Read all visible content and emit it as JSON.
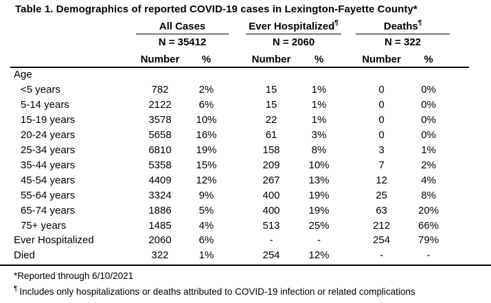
{
  "title": "Table 1. Demographics of reported COVID-19 cases in Lexington-Fayette County*",
  "table": {
    "groups": [
      {
        "label": "All Cases",
        "footnote_mark": "",
        "n_label": "N = 35412"
      },
      {
        "label": "Ever Hospitalized",
        "footnote_mark": "¶",
        "n_label": "N = 2060"
      },
      {
        "label": "Deaths",
        "footnote_mark": "¶",
        "n_label": "N = 322"
      }
    ],
    "subheader": {
      "number": "Number",
      "percent": "%"
    },
    "rows": [
      {
        "label": "Age",
        "indent": false,
        "values": [
          "",
          "",
          "",
          "",
          "",
          ""
        ]
      },
      {
        "label": "<5 years",
        "indent": true,
        "values": [
          "782",
          "2%",
          "15",
          "1%",
          "0",
          "0%"
        ]
      },
      {
        "label": "5-14 years",
        "indent": true,
        "values": [
          "2122",
          "6%",
          "15",
          "1%",
          "0",
          "0%"
        ]
      },
      {
        "label": "15-19 years",
        "indent": true,
        "values": [
          "3578",
          "10%",
          "22",
          "1%",
          "0",
          "0%"
        ]
      },
      {
        "label": "20-24 years",
        "indent": true,
        "values": [
          "5658",
          "16%",
          "61",
          "3%",
          "0",
          "0%"
        ]
      },
      {
        "label": "25-34 years",
        "indent": true,
        "values": [
          "6810",
          "19%",
          "158",
          "8%",
          "3",
          "1%"
        ]
      },
      {
        "label": "35-44 years",
        "indent": true,
        "values": [
          "5358",
          "15%",
          "209",
          "10%",
          "7",
          "2%"
        ]
      },
      {
        "label": "45-54 years",
        "indent": true,
        "values": [
          "4409",
          "12%",
          "267",
          "13%",
          "12",
          "4%"
        ]
      },
      {
        "label": "55-64 years",
        "indent": true,
        "values": [
          "3324",
          "9%",
          "400",
          "19%",
          "25",
          "8%"
        ]
      },
      {
        "label": "65-74 years",
        "indent": true,
        "values": [
          "1886",
          "5%",
          "400",
          "19%",
          "63",
          "20%"
        ]
      },
      {
        "label": "75+ years",
        "indent": true,
        "values": [
          "1485",
          "4%",
          "513",
          "25%",
          "212",
          "66%"
        ]
      },
      {
        "label": "Ever Hospitalized",
        "indent": false,
        "values": [
          "2060",
          "6%",
          "-",
          "-",
          "254",
          "79%"
        ]
      },
      {
        "label": "Died",
        "indent": false,
        "values": [
          "322",
          "1%",
          "254",
          "12%",
          "-",
          "-"
        ]
      }
    ]
  },
  "footnotes": [
    {
      "mark": "*",
      "text": "Reported through 6/10/2021"
    },
    {
      "mark": "¶",
      "text": "Includes only hospitalizations or deaths attributed to COVID-19 infection or related complications"
    }
  ]
}
